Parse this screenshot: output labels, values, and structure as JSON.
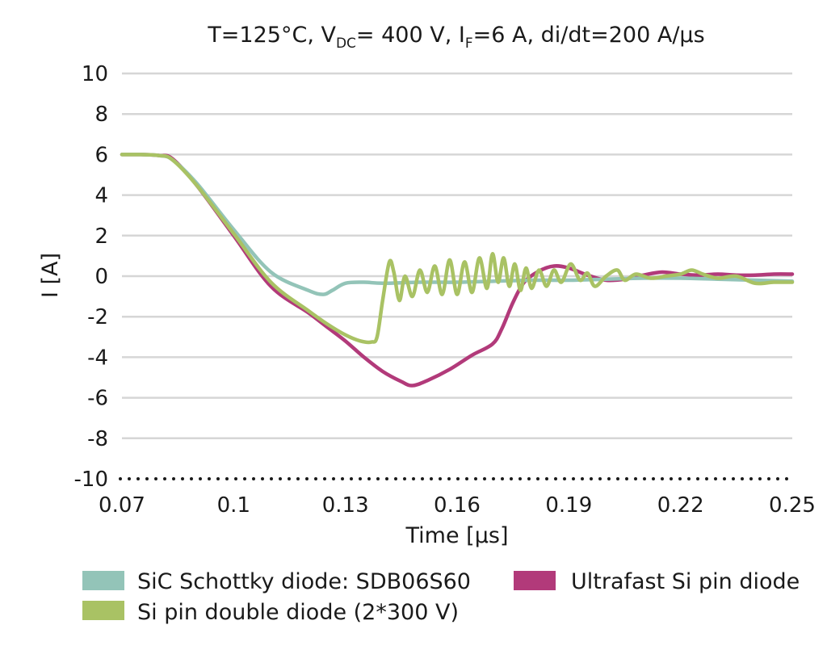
{
  "chart_data": {
    "type": "line",
    "title": {
      "p1": "T=125°C, V",
      "sub1": "DC",
      "p2": "= 400 V, I",
      "sub2": "F",
      "p3": "=6 A, di/dt=200 A/µs"
    },
    "xlabel": "Time [µs]",
    "ylabel": "I [A]",
    "xlim": [
      0.07,
      0.25
    ],
    "ylim": [
      -10,
      10
    ],
    "xticks": [
      0.07,
      0.1,
      0.13,
      0.16,
      0.19,
      0.22,
      0.25
    ],
    "xtick_labels": [
      "0.07",
      "0.1",
      "0.13",
      "0.16",
      "0.19",
      "0.22",
      "0.25"
    ],
    "yticks": [
      10,
      8,
      6,
      4,
      2,
      0,
      -2,
      -4,
      -6,
      -8,
      -10
    ],
    "ytick_labels": [
      "10",
      "8",
      "6",
      "4",
      "2",
      "0",
      "-2",
      "-4",
      "-6",
      "-8",
      "-10"
    ],
    "grid": "horizontal",
    "legend_position": "bottom",
    "colors": {
      "sic": "#93c4b8",
      "ultrafast": "#b23a7a",
      "double": "#a9c264",
      "grid": "#d6d6d6",
      "text": "#1a1a1a"
    },
    "series": [
      {
        "name": "Ultrafast Si pin diode",
        "color": "#b23a7a",
        "x": [
          0.07,
          0.075,
          0.08,
          0.0835,
          0.09,
          0.1,
          0.11,
          0.12,
          0.125,
          0.13,
          0.135,
          0.14,
          0.145,
          0.148,
          0.152,
          0.158,
          0.164,
          0.1695,
          0.172,
          0.175,
          0.178,
          0.182,
          0.186,
          0.19,
          0.195,
          0.2,
          0.205,
          0.21,
          0.215,
          0.22,
          0.225,
          0.23,
          0.235,
          0.24,
          0.245,
          0.25
        ],
        "y": [
          6.0,
          6.0,
          5.95,
          5.8,
          4.5,
          2.0,
          -0.5,
          -1.8,
          -2.5,
          -3.2,
          -4.0,
          -4.7,
          -5.2,
          -5.4,
          -5.15,
          -4.6,
          -3.9,
          -3.35,
          -2.6,
          -1.3,
          -0.3,
          0.25,
          0.5,
          0.4,
          0.05,
          -0.2,
          -0.15,
          0.05,
          0.2,
          0.1,
          0.05,
          0.1,
          0.05,
          0.05,
          0.1,
          0.1
        ]
      },
      {
        "name": "SiC Schottky diode: SDB06S60",
        "color": "#93c4b8",
        "x": [
          0.07,
          0.075,
          0.08,
          0.0835,
          0.09,
          0.1,
          0.11,
          0.12,
          0.124,
          0.1265,
          0.13,
          0.135,
          0.14,
          0.15,
          0.16,
          0.17,
          0.18,
          0.19,
          0.2,
          0.21,
          0.22,
          0.23,
          0.24,
          0.25
        ],
        "y": [
          6.0,
          6.0,
          5.95,
          5.75,
          4.6,
          2.3,
          0.2,
          -0.7,
          -0.9,
          -0.7,
          -0.35,
          -0.3,
          -0.35,
          -0.3,
          -0.3,
          -0.25,
          -0.2,
          -0.2,
          -0.15,
          -0.1,
          -0.1,
          -0.15,
          -0.2,
          -0.25
        ]
      },
      {
        "name": "Si pin double diode (2*300 V)",
        "color": "#a9c264",
        "x": [
          0.07,
          0.075,
          0.08,
          0.0835,
          0.09,
          0.1,
          0.11,
          0.12,
          0.125,
          0.13,
          0.134,
          0.137,
          0.1385,
          0.14,
          0.1418,
          0.143,
          0.1445,
          0.146,
          0.148,
          0.15,
          0.152,
          0.154,
          0.156,
          0.158,
          0.16,
          0.162,
          0.164,
          0.166,
          0.168,
          0.1695,
          0.171,
          0.1725,
          0.174,
          0.1755,
          0.177,
          0.1785,
          0.18,
          0.182,
          0.184,
          0.186,
          0.188,
          0.1905,
          0.193,
          0.195,
          0.197,
          0.2,
          0.203,
          0.205,
          0.208,
          0.212,
          0.216,
          0.22,
          0.223,
          0.226,
          0.23,
          0.235,
          0.24,
          0.245,
          0.25
        ],
        "y": [
          6.0,
          6.0,
          5.95,
          5.75,
          4.5,
          2.1,
          -0.3,
          -1.7,
          -2.35,
          -2.9,
          -3.2,
          -3.25,
          -3.0,
          -1.2,
          0.7,
          0.2,
          -1.2,
          0.0,
          -1.0,
          0.3,
          -0.8,
          0.5,
          -0.9,
          0.8,
          -0.9,
          0.7,
          -0.8,
          0.9,
          -0.6,
          1.1,
          -0.3,
          0.9,
          -0.5,
          0.6,
          -0.7,
          0.4,
          -0.6,
          0.3,
          -0.5,
          0.3,
          -0.3,
          0.6,
          -0.2,
          0.15,
          -0.5,
          0.0,
          0.3,
          -0.2,
          0.1,
          -0.1,
          0.0,
          0.1,
          0.3,
          0.1,
          -0.1,
          0.0,
          -0.35,
          -0.3,
          -0.3
        ]
      }
    ],
    "legend": [
      {
        "label": "SiC Schottky diode: SDB06S60",
        "color": "#93c4b8"
      },
      {
        "label": "Ultrafast Si pin diode",
        "color": "#b23a7a"
      },
      {
        "label": "Si pin double diode (2*300 V)",
        "color": "#a9c264"
      }
    ]
  }
}
